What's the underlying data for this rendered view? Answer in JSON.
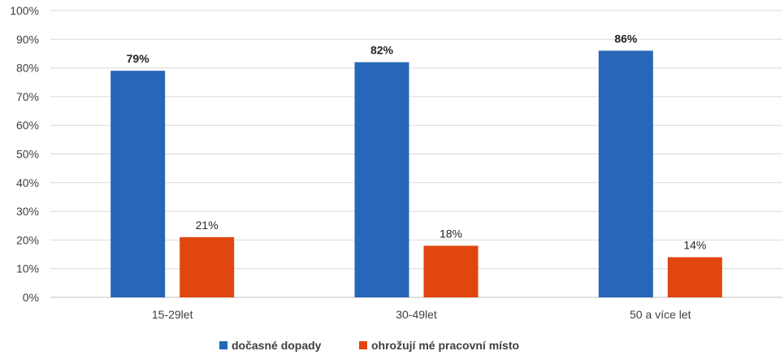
{
  "chart_data": {
    "type": "bar",
    "categories": [
      "15-29let",
      "30-49let",
      "50 a více let"
    ],
    "series": [
      {
        "name": "dočasné dopady",
        "values": [
          79,
          82,
          86
        ],
        "color": "#2766b8",
        "label_bold": true
      },
      {
        "name": "ohrožují mé pracovní místo",
        "values": [
          21,
          18,
          14
        ],
        "color": "#e1460f",
        "label_bold": false
      }
    ],
    "ylim": [
      0,
      100
    ],
    "yticks": [
      0,
      10,
      20,
      30,
      40,
      50,
      60,
      70,
      80,
      90,
      100
    ],
    "value_suffix": "%",
    "grid": true,
    "legend": "bottom",
    "title": "",
    "xlabel": "",
    "ylabel": ""
  }
}
